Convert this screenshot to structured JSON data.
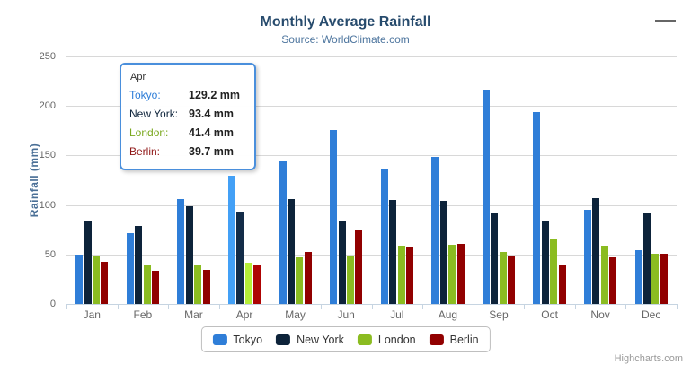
{
  "header": {
    "title": "Monthly Average Rainfall",
    "subtitle": "Source: WorldClimate.com"
  },
  "chart_data": {
    "type": "bar",
    "title": "Monthly Average Rainfall",
    "subtitle": "Source: WorldClimate.com",
    "xlabel": "",
    "ylabel": "Rainfall (mm)",
    "ylim": [
      0,
      250
    ],
    "ytick_interval": 50,
    "ytick_labels": [
      "0",
      "50",
      "100",
      "150",
      "200",
      "250"
    ],
    "grid": true,
    "legend_position": "bottom-center",
    "categories": [
      "Jan",
      "Feb",
      "Mar",
      "Apr",
      "May",
      "Jun",
      "Jul",
      "Aug",
      "Sep",
      "Oct",
      "Nov",
      "Dec"
    ],
    "series": [
      {
        "name": "Tokyo",
        "color": "#2f7ed8",
        "values": [
          49.9,
          71.5,
          106.4,
          129.2,
          144.0,
          176.0,
          135.6,
          148.5,
          216.4,
          194.1,
          95.6,
          54.4
        ]
      },
      {
        "name": "New York",
        "color": "#0d233a",
        "values": [
          83.6,
          78.8,
          98.5,
          93.4,
          106.0,
          84.5,
          105.0,
          104.3,
          91.2,
          83.5,
          106.6,
          92.3
        ]
      },
      {
        "name": "London",
        "color": "#8bbc21",
        "values": [
          48.9,
          38.8,
          39.3,
          41.4,
          47.0,
          48.3,
          59.0,
          59.6,
          52.4,
          65.2,
          59.3,
          51.2
        ]
      },
      {
        "name": "Berlin",
        "color": "#910000",
        "values": [
          42.4,
          33.2,
          34.5,
          39.7,
          52.6,
          75.5,
          57.4,
          60.4,
          47.6,
          39.1,
          46.8,
          51.1
        ]
      }
    ],
    "hovered_category": "Apr"
  },
  "y_axis": {
    "title": "Rainfall (mm)"
  },
  "tooltip": {
    "header": "Apr",
    "rows": [
      {
        "label": "Tokyo:",
        "value": "129.2 mm",
        "color": "#2f7ed8"
      },
      {
        "label": "New York:",
        "value": "93.4 mm",
        "color": "#0d233a"
      },
      {
        "label": "London:",
        "value": "41.4 mm",
        "color": "#7aa81e"
      },
      {
        "label": "Berlin:",
        "value": "39.7 mm",
        "color": "#8f1616"
      }
    ]
  },
  "legend": {
    "items": [
      {
        "label": "Tokyo",
        "color": "#2f7ed8"
      },
      {
        "label": "New York",
        "color": "#0d233a"
      },
      {
        "label": "London",
        "color": "#8bbc21"
      },
      {
        "label": "Berlin",
        "color": "#910000"
      }
    ]
  },
  "credits": {
    "label": "Highcharts.com"
  },
  "icons": {
    "context_menu": "hamburger-icon"
  },
  "colors": {
    "title": "#274b6d",
    "subtitle": "#4d759e",
    "axis_label": "#666666",
    "axis_title": "#4a6f96",
    "gridline": "#d8d8d8",
    "axis_line": "#c6d4e1",
    "tooltip_border": "#4a8fdc"
  }
}
